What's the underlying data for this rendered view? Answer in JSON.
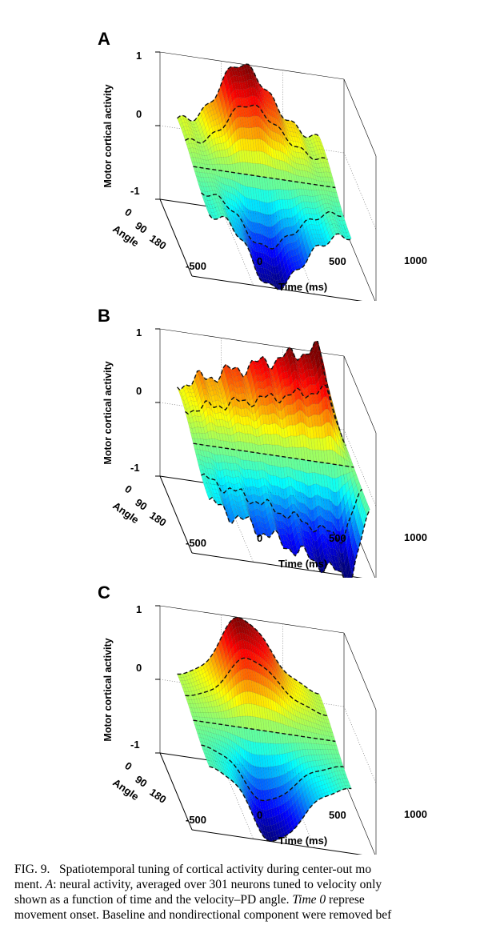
{
  "figure": {
    "panels": [
      {
        "letter": "A",
        "z_label": "Motor cortical activity",
        "angle_label": "Angle",
        "x_label": "Time (ms)"
      },
      {
        "letter": "B",
        "z_label": "Motor cortical activity",
        "angle_label": "Angle",
        "x_label": "Time (ms)"
      },
      {
        "letter": "C",
        "z_label": "Motor cortical activity",
        "angle_label": "Angle",
        "x_label": "Time (ms)"
      }
    ],
    "z_ticks": [
      "1",
      "0",
      "-1"
    ],
    "angle_ticks": [
      "0",
      "90",
      "180"
    ],
    "x_ticks": [
      "-500",
      "0",
      "500",
      "1000"
    ]
  },
  "chart_data": [
    {
      "type": "surface",
      "panel": "A",
      "xlabel": "Time (ms)",
      "ylabel": "Angle",
      "zlabel": "Motor cortical activity",
      "xlim": [
        -500,
        1000
      ],
      "ylim": [
        0,
        180
      ],
      "zlim": [
        -1,
        1
      ],
      "peak": {
        "time_ms": 150,
        "value": 1.0
      },
      "trough": {
        "time_ms": 150,
        "value": -1.0
      }
    },
    {
      "type": "surface",
      "panel": "B",
      "xlabel": "Time (ms)",
      "ylabel": "Angle",
      "zlabel": "Motor cortical activity",
      "xlim": [
        -500,
        1000
      ],
      "ylim": [
        0,
        180
      ],
      "zlim": [
        -1,
        1
      ],
      "peak": {
        "time_ms": 750,
        "value": 1.0
      },
      "trough": {
        "time_ms": 750,
        "value": -1.0
      }
    },
    {
      "type": "surface",
      "panel": "C",
      "xlabel": "Time (ms)",
      "ylabel": "Angle",
      "zlabel": "Motor cortical activity",
      "xlim": [
        -500,
        1000
      ],
      "ylim": [
        0,
        180
      ],
      "zlim": [
        -1,
        1
      ],
      "peak": {
        "time_ms": 150,
        "value": 1.0
      },
      "trough": {
        "time_ms": 150,
        "value": -1.0
      }
    }
  ],
  "caption": {
    "fig_label": "FIG. 9.",
    "line1_rest": "Spatiotemporal tuning of cortical activity during center-out mo",
    "line2_a": "ment. ",
    "line2_italic": "A",
    "line2_b": ": neural activity, averaged over 301 neurons tuned to velocity only",
    "line3_a": "shown as a function of time and the velocity–PD angle. ",
    "line3_italic": "Time 0",
    "line3_b": " represe",
    "line4": "movement onset. Baseline and nondirectional component were removed bef"
  }
}
